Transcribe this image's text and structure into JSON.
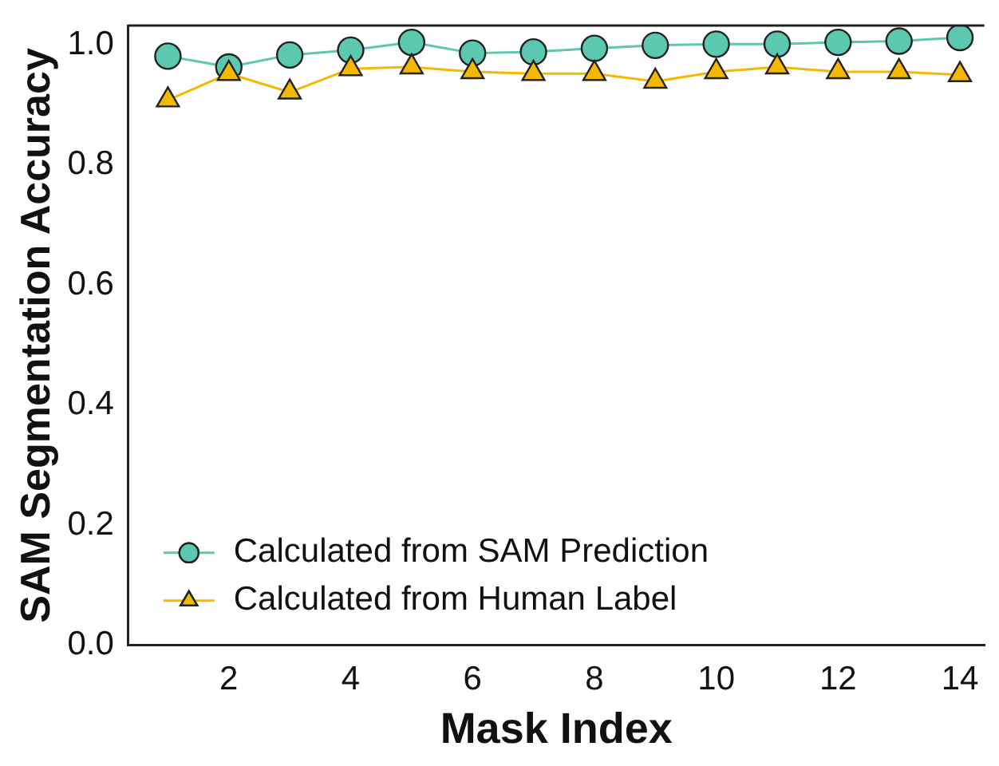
{
  "chart_data": {
    "type": "line",
    "xlabel": "Mask Index",
    "ylabel": "SAM Segmentation Accuracy",
    "x": [
      1,
      2,
      3,
      4,
      5,
      6,
      7,
      8,
      9,
      10,
      11,
      12,
      13,
      14
    ],
    "series": [
      {
        "name": "Calculated from SAM Prediction",
        "color": "#5cc8b0",
        "marker": "circle",
        "values": [
          0.981,
          0.963,
          0.983,
          0.991,
          1.004,
          0.986,
          0.988,
          0.994,
          0.999,
          1.001,
          1.001,
          1.004,
          1.006,
          1.012
        ]
      },
      {
        "name": "Calculated from Human Label",
        "color": "#f5b800",
        "marker": "triangle",
        "values": [
          0.908,
          0.952,
          0.921,
          0.96,
          0.963,
          0.955,
          0.952,
          0.952,
          0.939,
          0.955,
          0.963,
          0.955,
          0.955,
          0.95
        ]
      }
    ],
    "xlim": [
      0.35,
      14.4
    ],
    "xticks": [
      2,
      4,
      6,
      8,
      10,
      12,
      14
    ],
    "ylim": [
      0,
      1.032
    ],
    "yticks": [
      {
        "value": 0,
        "label": "0.0"
      },
      0.2,
      0.4,
      0.6,
      0.8,
      {
        "value": 1,
        "label": "1.0"
      }
    ],
    "grid": false,
    "legend": "bottom left",
    "line_style": "solid"
  }
}
